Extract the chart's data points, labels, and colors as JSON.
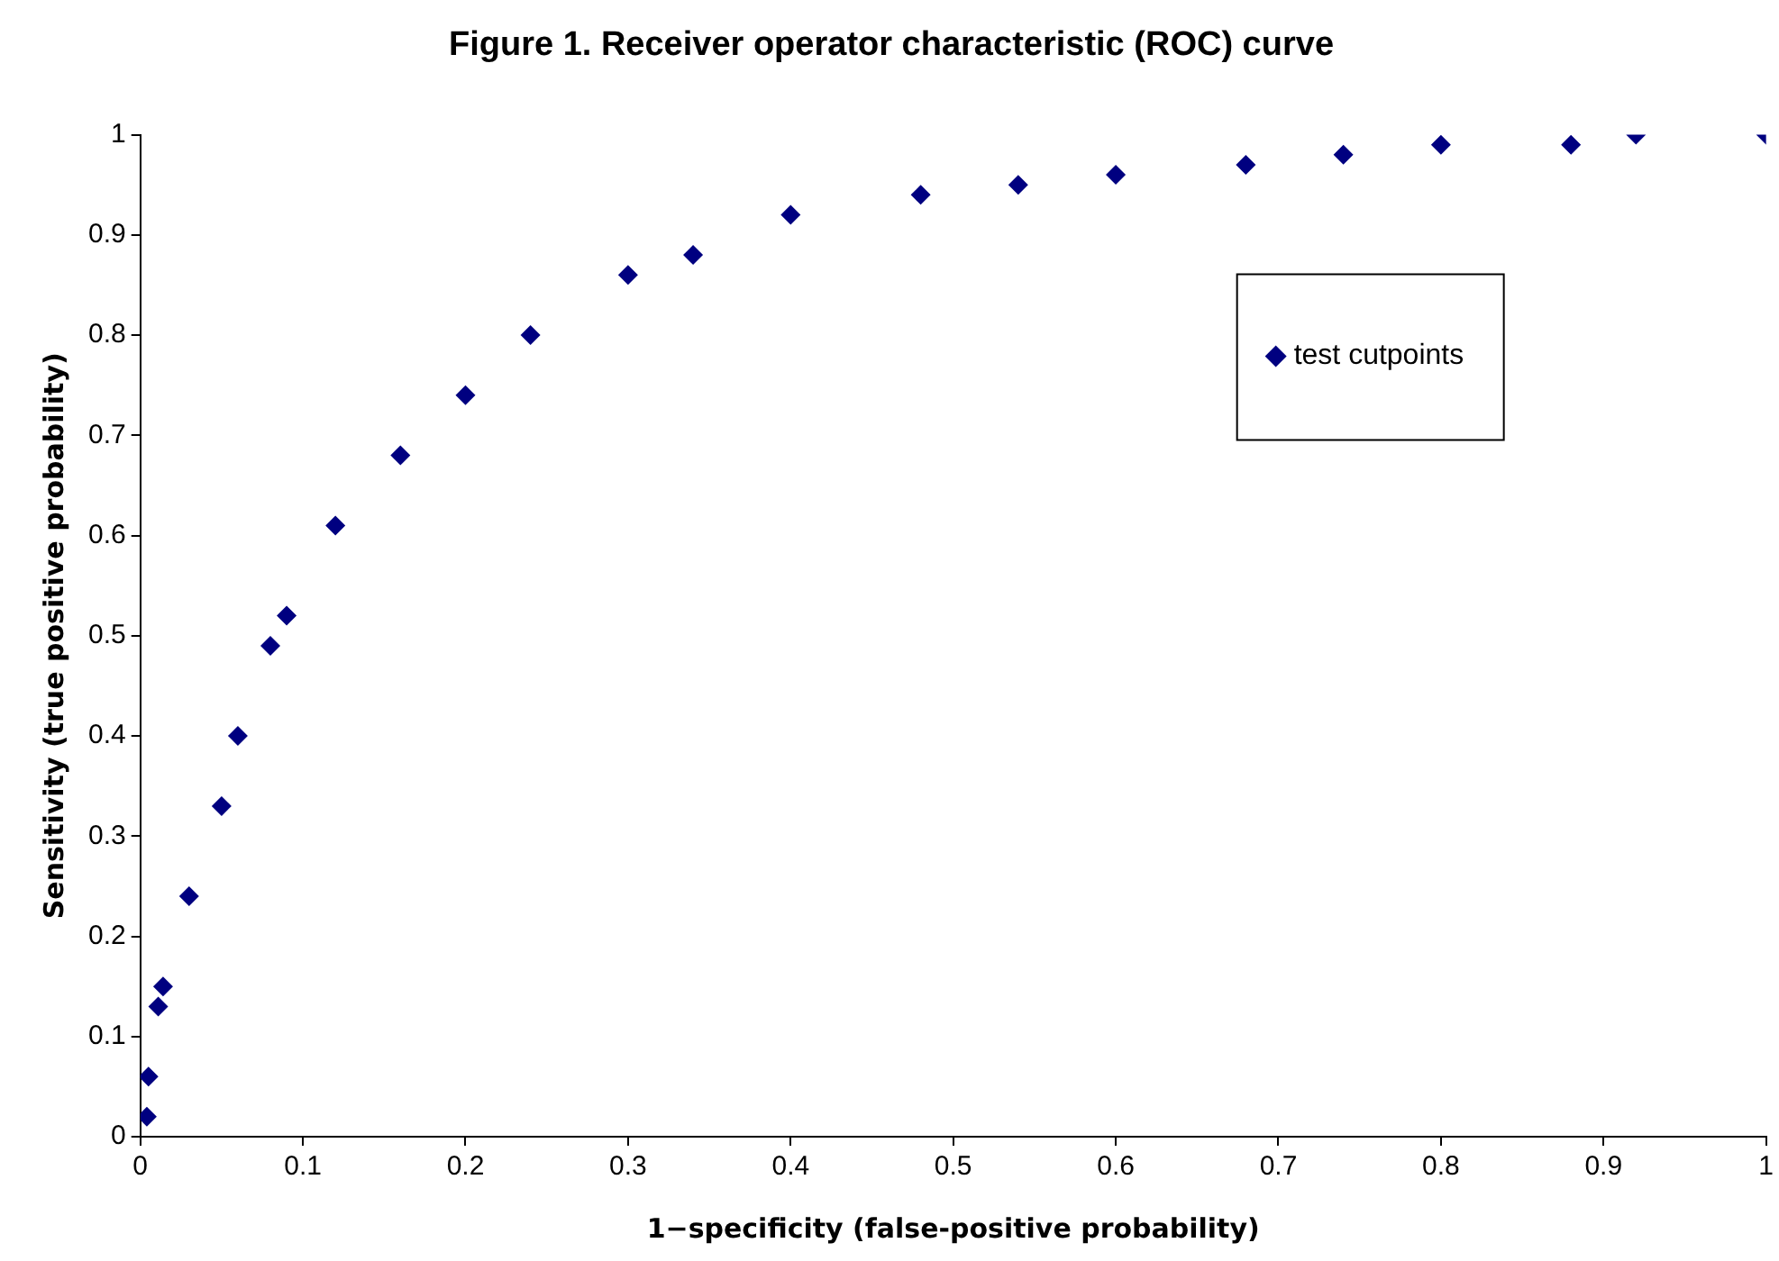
{
  "chart_data": {
    "type": "scatter",
    "title": "Figure 1. Receiver operator characteristic (ROC) curve",
    "xlabel": "1−specificity (false-positive probability)",
    "ylabel": "Sensitivity (true positive probability)",
    "series": [
      {
        "name": "test cutpoints",
        "color": "#000080",
        "x": [
          0.004,
          0.005,
          0.011,
          0.014,
          0.03,
          0.05,
          0.06,
          0.08,
          0.09,
          0.12,
          0.16,
          0.2,
          0.24,
          0.3,
          0.34,
          0.4,
          0.48,
          0.54,
          0.6,
          0.68,
          0.74,
          0.8,
          0.88,
          0.92,
          1.0
        ],
        "values": [
          0.02,
          0.06,
          0.13,
          0.15,
          0.24,
          0.33,
          0.4,
          0.49,
          0.52,
          0.61,
          0.68,
          0.74,
          0.8,
          0.86,
          0.88,
          0.92,
          0.94,
          0.95,
          0.96,
          0.97,
          0.98,
          0.99,
          0.99,
          1.0,
          1.0
        ]
      }
    ],
    "xlim": [
      0,
      1
    ],
    "ylim": [
      0,
      1
    ],
    "xticks": [
      0,
      0.1,
      0.2,
      0.3,
      0.4,
      0.5,
      0.6,
      0.7,
      0.8,
      0.9,
      1
    ],
    "yticks": [
      0,
      0.1,
      0.2,
      0.3,
      0.4,
      0.5,
      0.6,
      0.7,
      0.8,
      0.9,
      1
    ],
    "grid": false,
    "legend": "top right",
    "marker": "diamond"
  }
}
